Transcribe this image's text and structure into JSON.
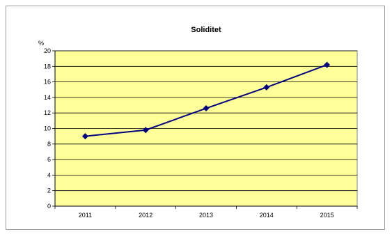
{
  "chart_data": {
    "type": "line",
    "title": "Soliditet",
    "ylabel": "%",
    "xlabel": "",
    "categories": [
      "2011",
      "2012",
      "2013",
      "2014",
      "2015"
    ],
    "series": [
      {
        "values": [
          9.0,
          9.8,
          12.6,
          15.3,
          18.2
        ]
      }
    ],
    "ylim": [
      0,
      20
    ],
    "yticks": [
      "0",
      "2",
      "4",
      "6",
      "8",
      "10",
      "12",
      "14",
      "16",
      "18",
      "20"
    ],
    "grid": true,
    "legend": "none",
    "colors": {
      "plot_background": "#ffff99",
      "line": "#000080",
      "gridline": "#000000"
    }
  }
}
